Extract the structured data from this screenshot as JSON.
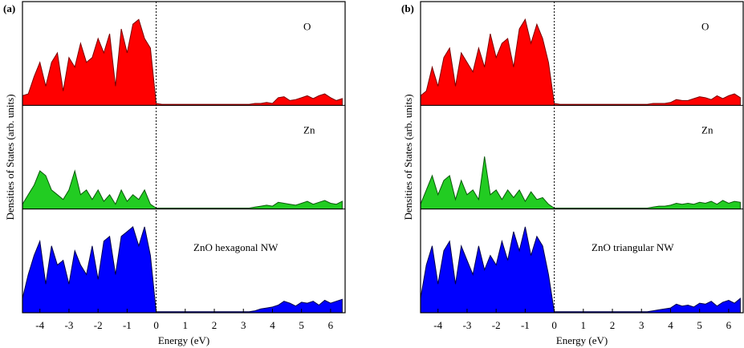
{
  "chart_data": [
    {
      "type": "area",
      "panel_label": "(a)",
      "xlabel": "Energy (eV)",
      "ylabel": "Densities of States (arb. units)",
      "xlim": [
        -4.6,
        6.5
      ],
      "xticks": [
        -4,
        -3,
        -2,
        -1,
        0,
        1,
        2,
        3,
        4,
        5,
        6
      ],
      "ylim": [
        0,
        1
      ],
      "vline": 0,
      "x": [
        -4.6,
        -4.4,
        -4.2,
        -4.0,
        -3.8,
        -3.6,
        -3.4,
        -3.2,
        -3.0,
        -2.8,
        -2.6,
        -2.4,
        -2.2,
        -2.0,
        -1.8,
        -1.6,
        -1.4,
        -1.2,
        -1.0,
        -0.8,
        -0.6,
        -0.4,
        -0.2,
        0.0,
        0.2,
        0.4,
        0.6,
        0.8,
        1.0,
        1.2,
        1.4,
        1.6,
        1.8,
        2.0,
        2.2,
        2.4,
        2.6,
        2.8,
        3.0,
        3.2,
        3.4,
        3.6,
        3.8,
        4.0,
        4.2,
        4.4,
        4.6,
        4.8,
        5.0,
        5.2,
        5.4,
        5.6,
        5.8,
        6.0,
        6.2,
        6.4
      ],
      "series": [
        {
          "name": "O",
          "color": "#ff0000",
          "values": [
            0.1,
            0.12,
            0.3,
            0.45,
            0.2,
            0.45,
            0.55,
            0.15,
            0.5,
            0.4,
            0.65,
            0.45,
            0.5,
            0.7,
            0.55,
            0.75,
            0.2,
            0.8,
            0.55,
            0.85,
            0.9,
            0.7,
            0.6,
            0.02,
            0.01,
            0.01,
            0.01,
            0.01,
            0.01,
            0.01,
            0.01,
            0.01,
            0.01,
            0.01,
            0.01,
            0.01,
            0.01,
            0.01,
            0.01,
            0.01,
            0.02,
            0.02,
            0.03,
            0.02,
            0.08,
            0.09,
            0.05,
            0.06,
            0.08,
            0.1,
            0.07,
            0.1,
            0.12,
            0.08,
            0.05,
            0.07
          ]
        },
        {
          "name": "Zn",
          "color": "#22cc22",
          "values": [
            0.05,
            0.15,
            0.25,
            0.4,
            0.35,
            0.2,
            0.15,
            0.1,
            0.2,
            0.4,
            0.15,
            0.2,
            0.1,
            0.2,
            0.08,
            0.15,
            0.05,
            0.2,
            0.08,
            0.15,
            0.1,
            0.2,
            0.05,
            0.01,
            0.01,
            0.01,
            0.01,
            0.01,
            0.01,
            0.01,
            0.01,
            0.01,
            0.01,
            0.01,
            0.01,
            0.01,
            0.01,
            0.01,
            0.01,
            0.01,
            0.02,
            0.03,
            0.04,
            0.03,
            0.07,
            0.06,
            0.05,
            0.04,
            0.06,
            0.08,
            0.05,
            0.07,
            0.09,
            0.06,
            0.05,
            0.08
          ]
        },
        {
          "name": "ZnO hexagonal NW",
          "color": "#0000ff",
          "values": [
            0.15,
            0.4,
            0.6,
            0.75,
            0.3,
            0.7,
            0.5,
            0.55,
            0.3,
            0.65,
            0.5,
            0.4,
            0.7,
            0.35,
            0.75,
            0.8,
            0.4,
            0.8,
            0.85,
            0.9,
            0.7,
            0.9,
            0.6,
            0.01,
            0.01,
            0.01,
            0.01,
            0.01,
            0.01,
            0.01,
            0.01,
            0.01,
            0.01,
            0.01,
            0.01,
            0.01,
            0.01,
            0.01,
            0.01,
            0.01,
            0.02,
            0.04,
            0.05,
            0.06,
            0.08,
            0.12,
            0.1,
            0.07,
            0.11,
            0.1,
            0.12,
            0.08,
            0.13,
            0.1,
            0.12,
            0.14
          ]
        }
      ]
    },
    {
      "type": "area",
      "panel_label": "(b)",
      "xlabel": "Energy (eV)",
      "ylabel": "Densities of States (arb. units)",
      "xlim": [
        -4.6,
        6.5
      ],
      "xticks": [
        -4,
        -3,
        -2,
        -1,
        0,
        1,
        2,
        3,
        4,
        5,
        6
      ],
      "ylim": [
        0,
        1
      ],
      "vline": 0,
      "x": [
        -4.6,
        -4.4,
        -4.2,
        -4.0,
        -3.8,
        -3.6,
        -3.4,
        -3.2,
        -3.0,
        -2.8,
        -2.6,
        -2.4,
        -2.2,
        -2.0,
        -1.8,
        -1.6,
        -1.4,
        -1.2,
        -1.0,
        -0.8,
        -0.6,
        -0.4,
        -0.2,
        0.0,
        0.2,
        0.4,
        0.6,
        0.8,
        1.0,
        1.2,
        1.4,
        1.6,
        1.8,
        2.0,
        2.2,
        2.4,
        2.6,
        2.8,
        3.0,
        3.2,
        3.4,
        3.6,
        3.8,
        4.0,
        4.2,
        4.4,
        4.6,
        4.8,
        5.0,
        5.2,
        5.4,
        5.6,
        5.8,
        6.0,
        6.2,
        6.4
      ],
      "series": [
        {
          "name": "O",
          "color": "#ff0000",
          "values": [
            0.1,
            0.15,
            0.4,
            0.2,
            0.5,
            0.6,
            0.2,
            0.55,
            0.45,
            0.35,
            0.6,
            0.4,
            0.75,
            0.5,
            0.65,
            0.7,
            0.4,
            0.8,
            0.9,
            0.65,
            0.85,
            0.7,
            0.45,
            0.02,
            0.01,
            0.01,
            0.01,
            0.01,
            0.01,
            0.01,
            0.01,
            0.01,
            0.01,
            0.01,
            0.01,
            0.01,
            0.01,
            0.01,
            0.01,
            0.01,
            0.02,
            0.02,
            0.02,
            0.03,
            0.06,
            0.05,
            0.05,
            0.07,
            0.09,
            0.08,
            0.06,
            0.1,
            0.07,
            0.1,
            0.12,
            0.08
          ]
        },
        {
          "name": "Zn",
          "color": "#22cc22",
          "values": [
            0.05,
            0.2,
            0.35,
            0.15,
            0.3,
            0.35,
            0.1,
            0.3,
            0.15,
            0.2,
            0.1,
            0.55,
            0.15,
            0.2,
            0.1,
            0.2,
            0.12,
            0.2,
            0.08,
            0.18,
            0.1,
            0.12,
            0.05,
            0.01,
            0.01,
            0.01,
            0.01,
            0.01,
            0.01,
            0.01,
            0.01,
            0.01,
            0.01,
            0.01,
            0.01,
            0.01,
            0.01,
            0.01,
            0.01,
            0.01,
            0.02,
            0.03,
            0.03,
            0.04,
            0.06,
            0.05,
            0.06,
            0.05,
            0.07,
            0.06,
            0.08,
            0.05,
            0.09,
            0.06,
            0.08,
            0.07
          ]
        },
        {
          "name": "ZnO triangular NW",
          "color": "#0000ff",
          "values": [
            0.15,
            0.5,
            0.7,
            0.3,
            0.65,
            0.75,
            0.3,
            0.7,
            0.55,
            0.4,
            0.7,
            0.45,
            0.6,
            0.5,
            0.75,
            0.55,
            0.85,
            0.65,
            0.9,
            0.6,
            0.8,
            0.7,
            0.4,
            0.01,
            0.01,
            0.01,
            0.01,
            0.01,
            0.01,
            0.01,
            0.01,
            0.01,
            0.01,
            0.01,
            0.01,
            0.01,
            0.01,
            0.01,
            0.01,
            0.01,
            0.02,
            0.03,
            0.04,
            0.05,
            0.09,
            0.07,
            0.08,
            0.06,
            0.1,
            0.09,
            0.12,
            0.07,
            0.11,
            0.13,
            0.1,
            0.15
          ]
        }
      ]
    }
  ]
}
